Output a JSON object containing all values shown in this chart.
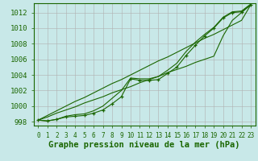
{
  "background_color": "#c8e8e8",
  "grid_color": "#b0b0b0",
  "line_color": "#1a6600",
  "marker_color": "#1a6600",
  "xlabel": "Graphe pression niveau de la mer (hPa)",
  "xlabel_fontsize": 7.5,
  "xtick_fontsize": 5.5,
  "ytick_fontsize": 6.5,
  "xlim": [
    -0.5,
    23.5
  ],
  "ylim": [
    997.5,
    1013.2
  ],
  "yticks": [
    998,
    1000,
    1002,
    1004,
    1006,
    1008,
    1010,
    1012
  ],
  "xticks": [
    0,
    1,
    2,
    3,
    4,
    5,
    6,
    7,
    8,
    9,
    10,
    11,
    12,
    13,
    14,
    15,
    16,
    17,
    18,
    19,
    20,
    21,
    22,
    23
  ],
  "series_straight1": [
    998.2,
    998.8,
    999.4,
    1000.0,
    1000.6,
    1001.1,
    1001.7,
    1002.3,
    1002.9,
    1003.4,
    1004.0,
    1004.6,
    1005.2,
    1005.8,
    1006.3,
    1006.9,
    1007.5,
    1008.1,
    1008.7,
    1009.2,
    1009.8,
    1010.4,
    1011.0,
    1013.0
  ],
  "series_straight2": [
    998.2,
    998.6,
    999.1,
    999.5,
    999.9,
    1000.4,
    1000.8,
    1001.2,
    1001.7,
    1002.1,
    1002.5,
    1003.0,
    1003.4,
    1003.8,
    1004.3,
    1004.7,
    1005.1,
    1005.6,
    1006.0,
    1006.4,
    1009.0,
    1011.0,
    1012.0,
    1013.0
  ],
  "series_marker": [
    998.2,
    998.1,
    998.3,
    998.6,
    998.7,
    998.8,
    999.1,
    999.5,
    1000.3,
    1001.2,
    1003.5,
    1003.3,
    1003.3,
    1003.4,
    1004.2,
    1005.0,
    1006.5,
    1007.8,
    1009.0,
    1010.0,
    1011.3,
    1012.0,
    1012.1,
    1013.0
  ],
  "series_curved": [
    998.2,
    998.1,
    998.3,
    998.7,
    998.9,
    999.0,
    999.4,
    1000.0,
    1001.0,
    1002.0,
    1003.6,
    1003.5,
    1003.5,
    1003.8,
    1004.6,
    1005.5,
    1007.0,
    1008.2,
    1009.2,
    1010.1,
    1011.4,
    1012.1,
    1012.2,
    1013.1
  ]
}
